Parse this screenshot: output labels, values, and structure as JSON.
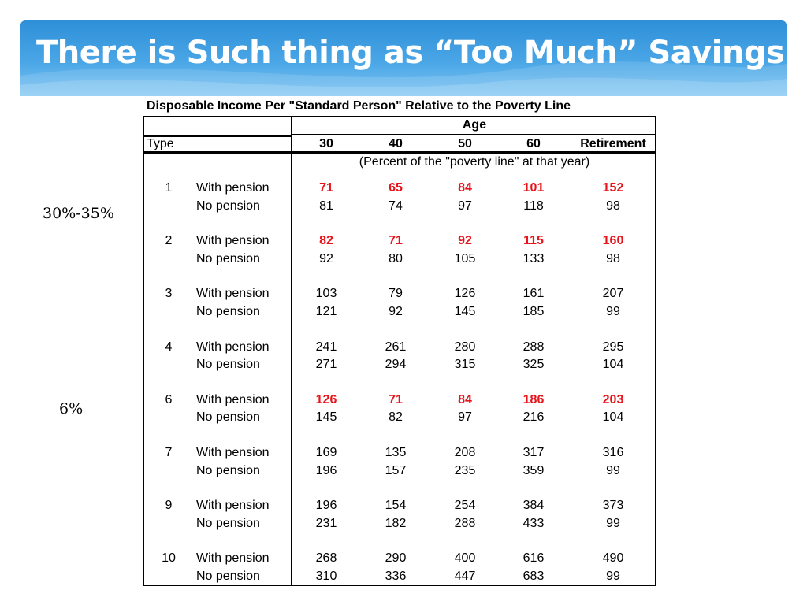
{
  "slide": {
    "title": "There is Such thing as “Too Much” Savings"
  },
  "table": {
    "caption": "Disposable Income Per \"Standard Person\" Relative to the Poverty Line",
    "age_header": "Age",
    "type_header": "Type",
    "columns": [
      "30",
      "40",
      "50",
      "60",
      "Retirement"
    ],
    "subheader": "(Percent of the \"poverty line\" at that year)",
    "groups": [
      {
        "type": "1",
        "rows": [
          {
            "label": "With pension",
            "values": [
              "71",
              "65",
              "84",
              "101",
              "152"
            ],
            "highlight": true
          },
          {
            "label": "No pension",
            "values": [
              "81",
              "74",
              "97",
              "118",
              "98"
            ],
            "highlight": false
          }
        ]
      },
      {
        "type": "2",
        "rows": [
          {
            "label": "With pension",
            "values": [
              "82",
              "71",
              "92",
              "115",
              "160"
            ],
            "highlight": true
          },
          {
            "label": "No pension",
            "values": [
              "92",
              "80",
              "105",
              "133",
              "98"
            ],
            "highlight": false
          }
        ]
      },
      {
        "type": "3",
        "rows": [
          {
            "label": "With pension",
            "values": [
              "103",
              "79",
              "126",
              "161",
              "207"
            ],
            "highlight": false
          },
          {
            "label": "No pension",
            "values": [
              "121",
              "92",
              "145",
              "185",
              "99"
            ],
            "highlight": false
          }
        ]
      },
      {
        "type": "4",
        "rows": [
          {
            "label": "With pension",
            "values": [
              "241",
              "261",
              "280",
              "288",
              "295"
            ],
            "highlight": false
          },
          {
            "label": "No pension",
            "values": [
              "271",
              "294",
              "315",
              "325",
              "104"
            ],
            "highlight": false
          }
        ]
      },
      {
        "type": "6",
        "rows": [
          {
            "label": "With pension",
            "values": [
              "126",
              "71",
              "84",
              "186",
              "203"
            ],
            "highlight": true
          },
          {
            "label": "No pension",
            "values": [
              "145",
              "82",
              "97",
              "216",
              "104"
            ],
            "highlight": false
          }
        ]
      },
      {
        "type": "7",
        "rows": [
          {
            "label": "With pension",
            "values": [
              "169",
              "135",
              "208",
              "317",
              "316"
            ],
            "highlight": false
          },
          {
            "label": "No pension",
            "values": [
              "196",
              "157",
              "235",
              "359",
              "99"
            ],
            "highlight": false
          }
        ]
      },
      {
        "type": "9",
        "rows": [
          {
            "label": "With pension",
            "values": [
              "196",
              "154",
              "254",
              "384",
              "373"
            ],
            "highlight": false
          },
          {
            "label": "No pension",
            "values": [
              "231",
              "182",
              "288",
              "433",
              "99"
            ],
            "highlight": false
          }
        ]
      },
      {
        "type": "10",
        "rows": [
          {
            "label": "With pension",
            "values": [
              "268",
              "290",
              "400",
              "616",
              "490"
            ],
            "highlight": false
          },
          {
            "label": "No pension",
            "values": [
              "310",
              "336",
              "447",
              "683",
              "99"
            ],
            "highlight": false
          }
        ]
      }
    ]
  },
  "annotations": [
    "30%-35%",
    "6%"
  ],
  "colors": {
    "header_blue": "#2e8fd8",
    "highlight_red": "#e8141b"
  }
}
